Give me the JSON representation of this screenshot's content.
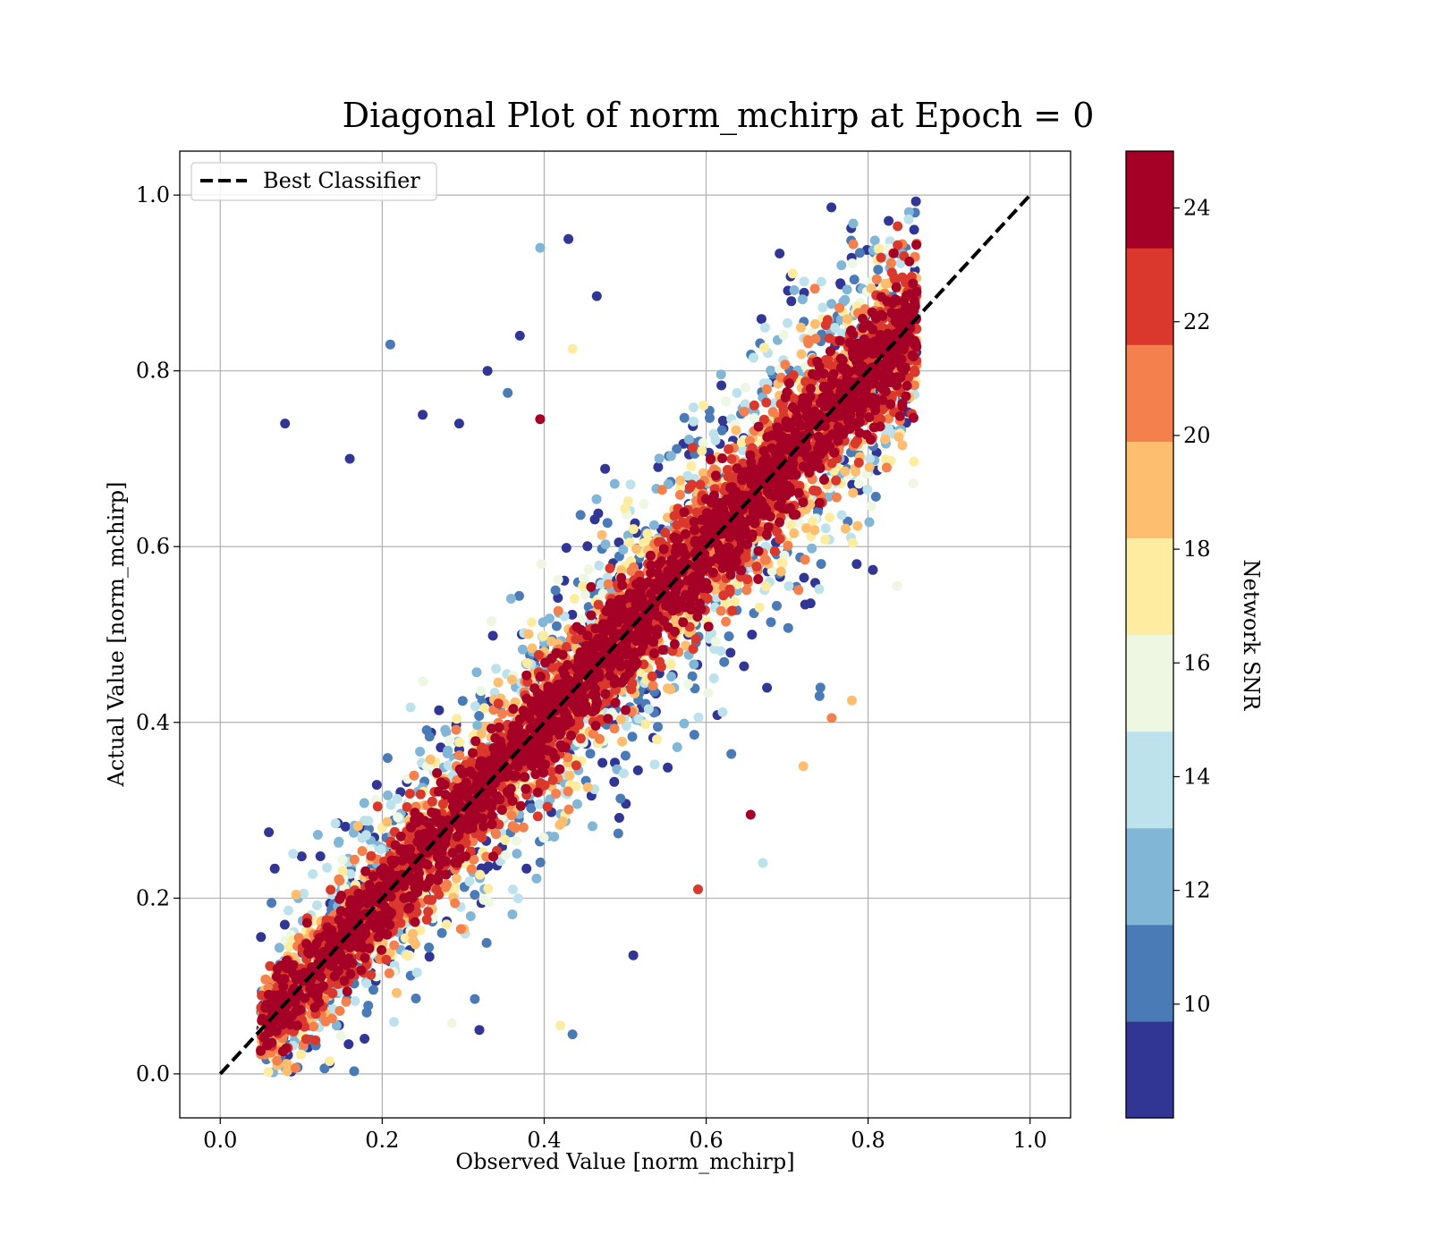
{
  "chart_data": {
    "type": "scatter",
    "title": "Diagonal Plot of norm_mchirp at Epoch = 0",
    "xlabel": "Observed Value [norm_mchirp]",
    "ylabel": "Actual Value [norm_mchirp]",
    "xlim": [
      -0.05,
      1.05
    ],
    "ylim": [
      -0.05,
      1.05
    ],
    "xticks": [
      "0.0",
      "0.2",
      "0.4",
      "0.6",
      "0.8",
      "1.0"
    ],
    "yticks": [
      "0.0",
      "0.2",
      "0.4",
      "0.6",
      "0.8",
      "1.0"
    ],
    "grid": true,
    "legend": {
      "placement": "top-left",
      "entries": [
        {
          "label": "Best Classifier",
          "style": "dashed black line"
        }
      ]
    },
    "reference_line": {
      "name": "Best Classifier",
      "x": [
        0.0,
        1.0
      ],
      "y": [
        0.0,
        1.0
      ],
      "color": "#000000"
    },
    "colorbar": {
      "label": "Network SNR",
      "range": [
        8,
        25
      ],
      "ticks": [
        "10",
        "12",
        "14",
        "16",
        "18",
        "20",
        "22",
        "24"
      ],
      "colors": [
        "#313695",
        "#4575b4",
        "#74add1",
        "#abd9e9",
        "#e0f3f8",
        "#fee090",
        "#fdae61",
        "#f46d43",
        "#d73027",
        "#a50026"
      ],
      "bands": [
        "#313695",
        "#4a7bb7",
        "#82b6d6",
        "#bde2ec",
        "#edf7e1",
        "#feeca0",
        "#fdbe6f",
        "#f4804e",
        "#da382d",
        "#a50026"
      ]
    },
    "series": [
      {
        "description": "approx. 8000 points clustered around the diagonal, color = Network SNR",
        "x_range": [
          0.05,
          0.86
        ],
        "y_range": [
          0.0,
          0.99
        ],
        "outliers": [
          {
            "x": 0.08,
            "y": 0.74,
            "snr": 8.5
          },
          {
            "x": 0.16,
            "y": 0.7,
            "snr": 8.5
          },
          {
            "x": 0.21,
            "y": 0.83,
            "snr": 10.5
          },
          {
            "x": 0.395,
            "y": 0.94,
            "snr": 12.5
          },
          {
            "x": 0.43,
            "y": 0.95,
            "snr": 8.5
          },
          {
            "x": 0.33,
            "y": 0.8,
            "snr": 8.5
          },
          {
            "x": 0.355,
            "y": 0.775,
            "snr": 10.5
          },
          {
            "x": 0.06,
            "y": 0.275,
            "snr": 8.5
          },
          {
            "x": 0.67,
            "y": 0.24,
            "snr": 14.5
          },
          {
            "x": 0.655,
            "y": 0.295,
            "snr": 24.5
          },
          {
            "x": 0.51,
            "y": 0.135,
            "snr": 8.5
          },
          {
            "x": 0.59,
            "y": 0.21,
            "snr": 22.5
          },
          {
            "x": 0.435,
            "y": 0.045,
            "snr": 10.5
          },
          {
            "x": 0.32,
            "y": 0.05,
            "snr": 8.5
          },
          {
            "x": 0.42,
            "y": 0.055,
            "snr": 16.5
          },
          {
            "x": 0.25,
            "y": 0.75,
            "snr": 8.5
          },
          {
            "x": 0.295,
            "y": 0.74,
            "snr": 8.5
          },
          {
            "x": 0.395,
            "y": 0.745,
            "snr": 24.5
          },
          {
            "x": 0.435,
            "y": 0.825,
            "snr": 16.5
          },
          {
            "x": 0.37,
            "y": 0.84,
            "snr": 8.5
          },
          {
            "x": 0.465,
            "y": 0.885,
            "snr": 8.5
          },
          {
            "x": 0.84,
            "y": 0.76,
            "snr": 16.5
          },
          {
            "x": 0.78,
            "y": 0.425,
            "snr": 18.5
          },
          {
            "x": 0.755,
            "y": 0.405,
            "snr": 20.5
          },
          {
            "x": 0.72,
            "y": 0.35,
            "snr": 18.5
          },
          {
            "x": 0.74,
            "y": 0.43,
            "snr": 10.5
          }
        ]
      }
    ]
  }
}
